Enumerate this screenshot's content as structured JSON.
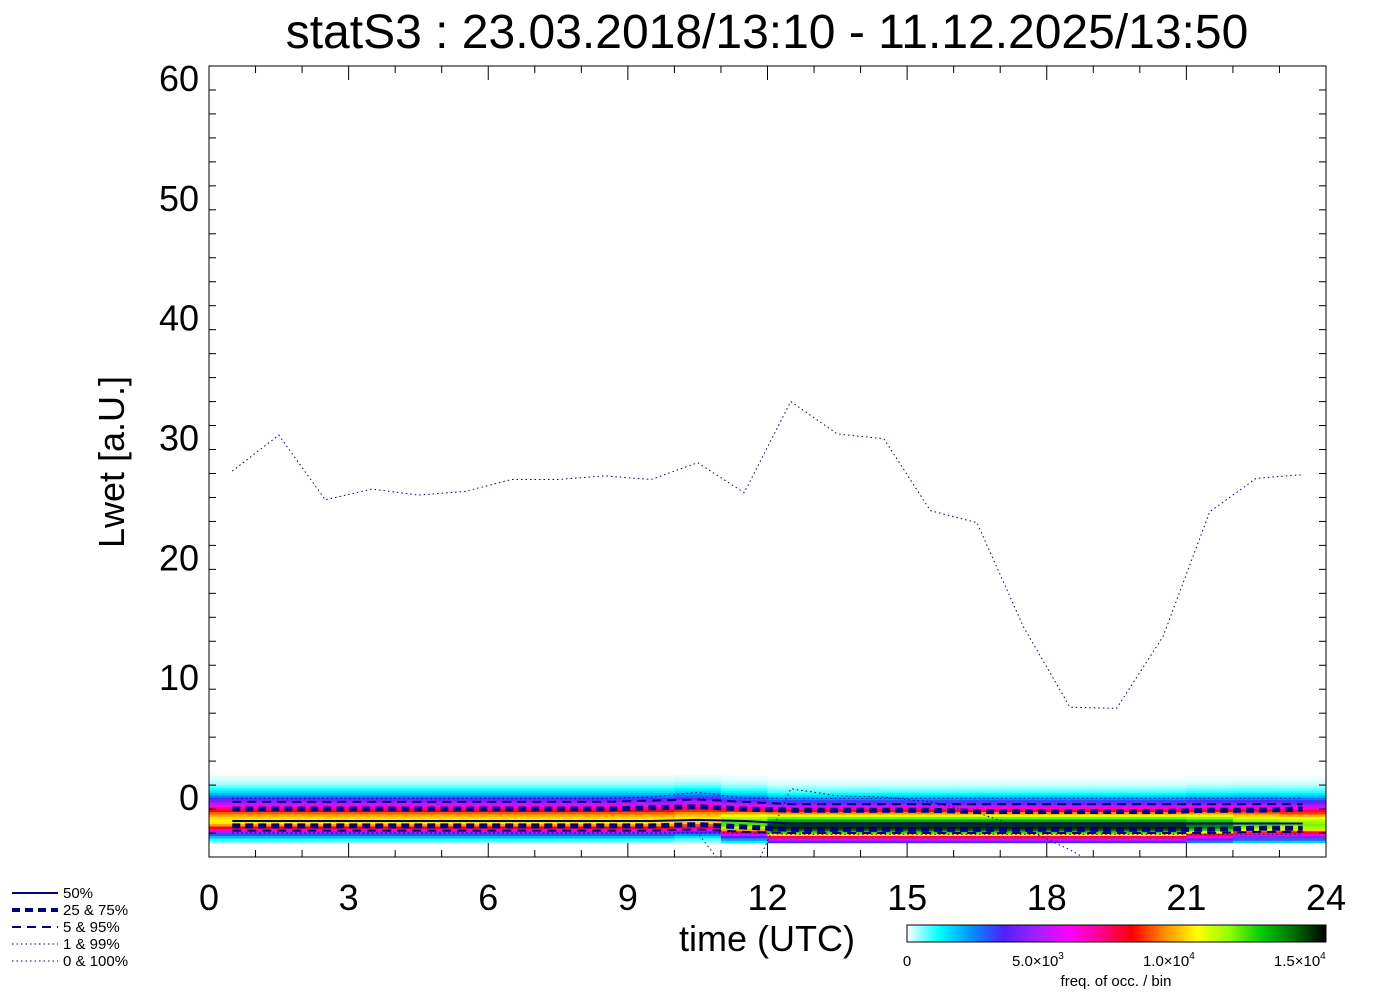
{
  "chart_data": {
    "type": "line",
    "title": "statS3 : 23.03.2018/13:10 - 11.12.2025/13:50",
    "xlabel": "time (UTC)",
    "ylabel": "Lwet [a.U.]",
    "xlim": [
      0,
      24
    ],
    "ylim": [
      -5,
      61
    ],
    "xticks": [
      0,
      3,
      6,
      9,
      12,
      15,
      18,
      21,
      24
    ],
    "xtick_labels": [
      "0",
      "3",
      "6",
      "9",
      "12",
      "15",
      "18",
      "21",
      "24"
    ],
    "yticks": [
      0,
      10,
      20,
      30,
      40,
      50,
      60
    ],
    "ytick_labels": [
      "0",
      "10",
      "20",
      "30",
      "40",
      "50",
      "60"
    ],
    "x": [
      0.5,
      1.5,
      2.5,
      3.5,
      4.5,
      5.5,
      6.5,
      7.5,
      8.5,
      9.5,
      10.5,
      11.5,
      12.5,
      13.5,
      14.5,
      15.5,
      16.5,
      17.5,
      18.5,
      19.5,
      20.5,
      21.5,
      22.5,
      23.5
    ],
    "series": [
      {
        "name": "100%",
        "style": "dotted",
        "width": 1,
        "values": [
          27.2,
          30.2,
          24.8,
          25.7,
          25.2,
          25.5,
          26.5,
          26.5,
          26.8,
          26.5,
          27.9,
          25.4,
          33.0,
          30.3,
          29.9,
          23.9,
          22.9,
          14.2,
          7.5,
          7.4,
          13.4,
          23.8,
          26.6,
          26.9
        ]
      },
      {
        "name": "99%",
        "style": "dotted",
        "width": 1,
        "values": [
          -0.1,
          -0.1,
          -0.1,
          -0.1,
          -0.1,
          -0.1,
          -0.1,
          -0.1,
          -0.1,
          0.0,
          0.4,
          -0.1,
          -0.1,
          -0.1,
          -0.1,
          -0.1,
          -0.1,
          -0.1,
          -0.1,
          -0.1,
          -0.1,
          -0.1,
          -0.1,
          -0.1
        ]
      },
      {
        "name": "95%",
        "style": "dashed",
        "width": 2,
        "values": [
          -0.4,
          -0.4,
          -0.4,
          -0.4,
          -0.4,
          -0.4,
          -0.4,
          -0.4,
          -0.4,
          -0.3,
          -0.2,
          -0.4,
          -0.6,
          -0.6,
          -0.6,
          -0.6,
          -0.6,
          -0.6,
          -0.6,
          -0.6,
          -0.6,
          -0.6,
          -0.6,
          -0.6
        ]
      },
      {
        "name": "75%",
        "style": "dashed-thick",
        "width": 5,
        "values": [
          -1.0,
          -1.0,
          -1.0,
          -1.0,
          -1.0,
          -1.0,
          -1.0,
          -1.0,
          -1.0,
          -0.9,
          -0.8,
          -1.0,
          -1.1,
          -1.1,
          -1.1,
          -1.1,
          -1.2,
          -1.2,
          -1.2,
          -1.2,
          -1.2,
          -1.1,
          -1.1,
          -1.0
        ]
      },
      {
        "name": "50%",
        "style": "solid",
        "width": 2,
        "values": [
          -2.0,
          -2.0,
          -2.0,
          -2.0,
          -2.0,
          -2.0,
          -2.0,
          -2.0,
          -2.0,
          -2.0,
          -1.9,
          -2.0,
          -2.2,
          -2.2,
          -2.2,
          -2.2,
          -2.2,
          -2.2,
          -2.2,
          -2.2,
          -2.2,
          -2.2,
          -2.2,
          -2.2
        ]
      },
      {
        "name": "25%",
        "style": "dashed-thick",
        "width": 5,
        "values": [
          -2.4,
          -2.4,
          -2.4,
          -2.4,
          -2.4,
          -2.4,
          -2.4,
          -2.4,
          -2.4,
          -2.4,
          -2.3,
          -2.5,
          -2.7,
          -2.7,
          -2.7,
          -2.7,
          -2.7,
          -2.7,
          -2.7,
          -2.7,
          -2.7,
          -2.7,
          -2.6,
          -2.6
        ]
      },
      {
        "name": "5%",
        "style": "dashed",
        "width": 2,
        "values": [
          -2.8,
          -2.8,
          -2.8,
          -2.8,
          -2.8,
          -2.8,
          -2.8,
          -2.8,
          -2.8,
          -2.8,
          -2.7,
          -2.9,
          -3.0,
          -3.0,
          -3.0,
          -3.0,
          -3.0,
          -3.0,
          -3.0,
          -3.0,
          -3.0,
          -3.0,
          -2.9,
          -2.9
        ]
      },
      {
        "name": "1%",
        "style": "dotted",
        "width": 1,
        "values": [
          -3.0,
          -3.0,
          -3.0,
          -3.0,
          -3.0,
          -3.0,
          -3.0,
          -3.0,
          -3.0,
          -3.0,
          -3.0,
          -3.0,
          -3.1,
          -3.1,
          -3.1,
          -3.1,
          -3.1,
          -3.1,
          -3.1,
          -3.1,
          -3.1,
          -3.1,
          -3.1,
          -3.1
        ]
      },
      {
        "name": "0%",
        "style": "dotted",
        "width": 1,
        "values": [
          -3.0,
          -3.0,
          -3.0,
          -3.0,
          -3.0,
          -3.0,
          -3.0,
          -3.0,
          -3.0,
          -3.0,
          -3.0,
          -8.0,
          0.7,
          0.1,
          0.0,
          -0.4,
          -1.3,
          -2.6,
          -4.4,
          -6.6,
          -8.0,
          -8.0,
          -8.0,
          -8.0
        ]
      }
    ],
    "series_color": "#000080",
    "heatmap": {
      "description_ref": "2-D frequency of occurrence per bin",
      "center_values": [
        -2.0,
        -2.0,
        -2.0,
        -2.0,
        -2.0,
        -2.0,
        -2.0,
        -2.0,
        -2.0,
        -2.0,
        -1.9,
        -2.2,
        -2.5,
        -2.5,
        -2.5,
        -2.5,
        -2.5,
        -2.5,
        -2.5,
        -2.5,
        -2.5,
        -2.4,
        -2.3,
        -2.3
      ],
      "range": [
        -3.8,
        1.8
      ],
      "peak_frequency": [
        11000,
        11000,
        11000,
        11000,
        11000,
        11000,
        11000,
        11000,
        11000,
        11000,
        11000,
        13000,
        15500,
        15500,
        15500,
        15500,
        15500,
        15500,
        15500,
        15500,
        15500,
        14500,
        13000,
        12500
      ]
    },
    "legend": {
      "placement": "bottom-left",
      "entries": [
        {
          "label": "50%",
          "style": "solid"
        },
        {
          "label": "25 &  75%",
          "style": "dashed-thick"
        },
        {
          "label": " 5 &  95%",
          "style": "dashed"
        },
        {
          "label": " 1 &  99%",
          "style": "dotted"
        },
        {
          "label": " 0 & 100%",
          "style": "dotted"
        }
      ]
    },
    "colorbar": {
      "label": "freq. of occ. / bin",
      "range": [
        0,
        16000
      ],
      "ticks": [
        {
          "value": 0,
          "mantissa": "0",
          "exponent": ""
        },
        {
          "value": 5000,
          "mantissa": "5.0×10",
          "exponent": "3"
        },
        {
          "value": 10000,
          "mantissa": "1.0×10",
          "exponent": "4"
        },
        {
          "value": 15000,
          "mantissa": "1.5×10",
          "exponent": "4"
        }
      ],
      "colors": [
        "#ffffff",
        "#00ffff",
        "#0090ff",
        "#5020ff",
        "#a020ff",
        "#ff00ff",
        "#ff0090",
        "#ff0000",
        "#ff9000",
        "#ffff00",
        "#90ff00",
        "#00cc00",
        "#007000",
        "#000000"
      ]
    },
    "grid": false
  }
}
